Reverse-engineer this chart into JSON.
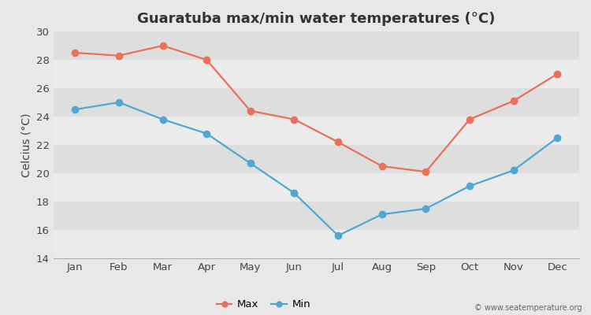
{
  "title": "Guaratuba max/min water temperatures (°C)",
  "ylabel": "Celcius (°C)",
  "months": [
    "Jan",
    "Feb",
    "Mar",
    "Apr",
    "May",
    "Jun",
    "Jul",
    "Aug",
    "Sep",
    "Oct",
    "Nov",
    "Dec"
  ],
  "max_temps": [
    28.5,
    28.3,
    29.0,
    28.0,
    24.4,
    23.8,
    22.2,
    20.5,
    20.1,
    23.8,
    25.1,
    27.0
  ],
  "min_temps": [
    24.5,
    25.0,
    23.8,
    22.8,
    20.7,
    18.6,
    15.6,
    17.1,
    17.5,
    19.1,
    20.2,
    22.5
  ],
  "max_color": "#e8715a",
  "min_color": "#4ea8d2",
  "background_color": "#e8e8e8",
  "plot_bg_light": "#ebebeb",
  "plot_bg_dark": "#dedede",
  "ylim": [
    14,
    30
  ],
  "yticks": [
    14,
    16,
    18,
    20,
    22,
    24,
    26,
    28,
    30
  ],
  "legend_labels": [
    "Max",
    "Min"
  ],
  "watermark": "© www.seatemperature.org",
  "title_fontsize": 13,
  "label_fontsize": 10,
  "tick_fontsize": 9.5,
  "markersize": 6,
  "linewidth": 1.6
}
